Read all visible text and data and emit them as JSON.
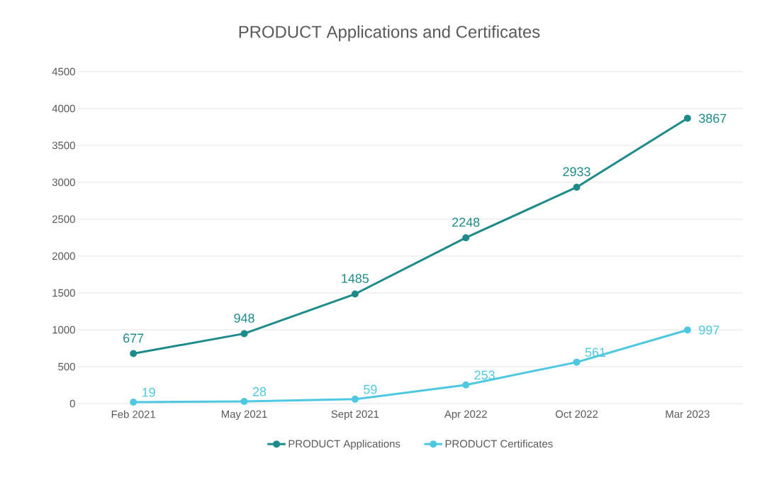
{
  "chart_data": {
    "type": "line",
    "title": "PRODUCT Applications and Certificates",
    "categories": [
      "Feb 2021",
      "May 2021",
      "Sept 2021",
      "Apr 2022",
      "Oct 2022",
      "Mar 2023"
    ],
    "series": [
      {
        "name": "PRODUCT Applications",
        "color": "#1e8a8a",
        "values": [
          677,
          948,
          1485,
          2248,
          2933,
          3867
        ]
      },
      {
        "name": "PRODUCT Certificates",
        "color": "#4ec8e0",
        "values": [
          19,
          28,
          59,
          253,
          561,
          997
        ]
      }
    ],
    "ylim": [
      0,
      4500
    ],
    "yticks": [
      0,
      500,
      1000,
      1500,
      2000,
      2500,
      3000,
      3500,
      4000,
      4500
    ],
    "grid": "y",
    "legend": "bottom",
    "marker": "circle",
    "line_style": "solid",
    "data_labels": true
  }
}
